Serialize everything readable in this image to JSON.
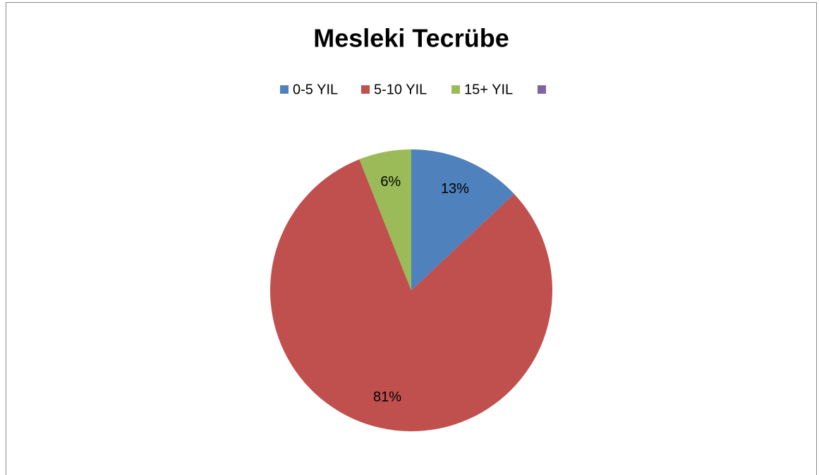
{
  "chart_data": {
    "type": "pie",
    "title": "Mesleki Tecrübe",
    "categories": [
      "0-5 YIL",
      "5-10 YIL",
      "15+ YIL",
      null
    ],
    "values": [
      13,
      81,
      6,
      0
    ],
    "value_labels": [
      "13%",
      "81%",
      "6%",
      null
    ],
    "colors": [
      "#4f81bd",
      "#c0504d",
      "#9bbb59",
      "#8064a2"
    ],
    "legend": "top"
  }
}
